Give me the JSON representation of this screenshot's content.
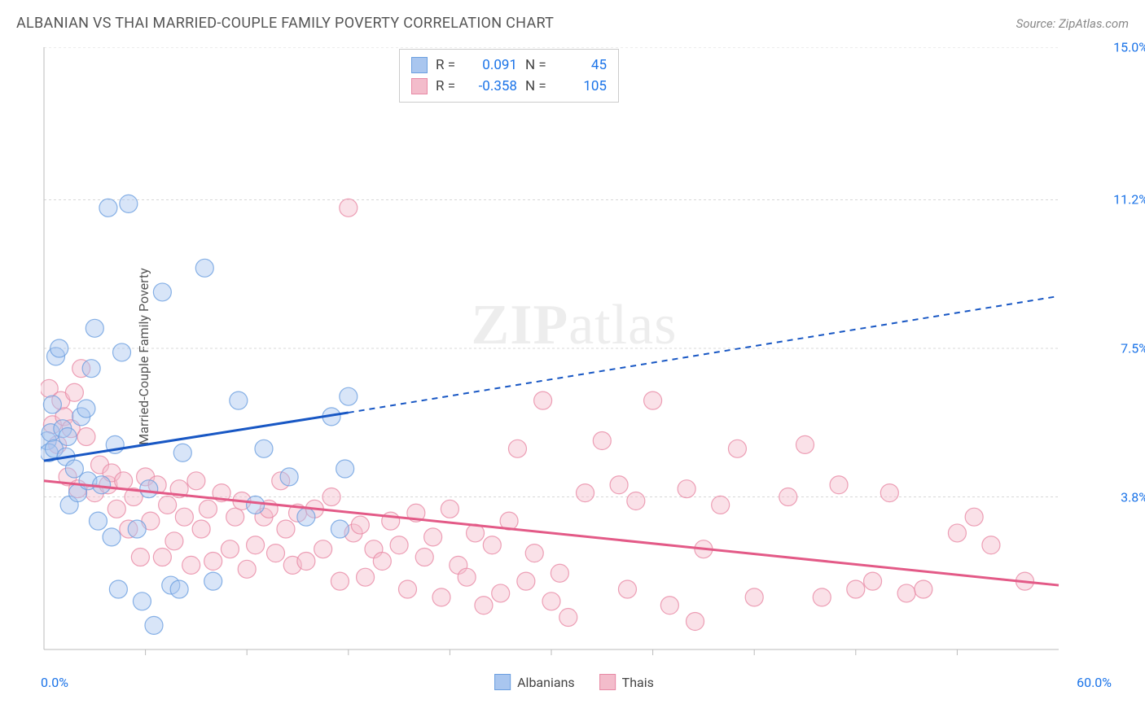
{
  "header": {
    "title": "ALBANIAN VS THAI MARRIED-COUPLE FAMILY POVERTY CORRELATION CHART",
    "source": "Source: ZipAtlas.com"
  },
  "y_axis_label": "Married-Couple Family Poverty",
  "watermark": {
    "zip": "ZIP",
    "atlas": "atlas"
  },
  "chart": {
    "type": "scatter",
    "background_color": "#ffffff",
    "grid_color": "#d8d8d8",
    "axis_color": "#bbbbbb",
    "x_range": [
      0,
      60
    ],
    "y_range": [
      0,
      15
    ],
    "y_ticks": [
      3.8,
      7.5,
      11.2,
      15.0
    ],
    "y_tick_labels": [
      "3.8%",
      "7.5%",
      "11.2%",
      "15.0%"
    ],
    "x_min_label": "0.0%",
    "x_max_label": "60.0%",
    "x_ticks": [
      6,
      12,
      18,
      24,
      30,
      36,
      42,
      48,
      54
    ],
    "marker_radius": 11,
    "marker_opacity": 0.45,
    "trend_line_width": 3,
    "series": {
      "albanians": {
        "label": "Albanians",
        "fill": "#a9c6ef",
        "stroke": "#6b9fe0",
        "trend_color": "#1857c4",
        "R": "0.091",
        "N": "45",
        "trend": {
          "x1": 0,
          "y1": 4.7,
          "x2_solid": 18,
          "y2_solid": 5.9,
          "x2": 60,
          "y2": 8.8
        },
        "points": [
          [
            0.2,
            5.2
          ],
          [
            0.3,
            4.9
          ],
          [
            0.4,
            5.4
          ],
          [
            0.5,
            6.1
          ],
          [
            0.6,
            5.0
          ],
          [
            0.7,
            7.3
          ],
          [
            0.9,
            7.5
          ],
          [
            1.1,
            5.5
          ],
          [
            1.3,
            4.8
          ],
          [
            1.4,
            5.3
          ],
          [
            1.5,
            3.6
          ],
          [
            1.8,
            4.5
          ],
          [
            2.0,
            3.9
          ],
          [
            2.2,
            5.8
          ],
          [
            2.5,
            6.0
          ],
          [
            2.6,
            4.2
          ],
          [
            2.8,
            7.0
          ],
          [
            3.0,
            8.0
          ],
          [
            3.2,
            3.2
          ],
          [
            3.4,
            4.1
          ],
          [
            3.8,
            11.0
          ],
          [
            4.0,
            2.8
          ],
          [
            4.2,
            5.1
          ],
          [
            4.4,
            1.5
          ],
          [
            4.6,
            7.4
          ],
          [
            5.0,
            11.1
          ],
          [
            5.5,
            3.0
          ],
          [
            5.8,
            1.2
          ],
          [
            6.2,
            4.0
          ],
          [
            6.5,
            0.6
          ],
          [
            7.0,
            8.9
          ],
          [
            7.5,
            1.6
          ],
          [
            8.0,
            1.5
          ],
          [
            8.2,
            4.9
          ],
          [
            9.5,
            9.5
          ],
          [
            10.0,
            1.7
          ],
          [
            11.5,
            6.2
          ],
          [
            12.5,
            3.6
          ],
          [
            13.0,
            5.0
          ],
          [
            14.5,
            4.3
          ],
          [
            15.5,
            3.3
          ],
          [
            17.0,
            5.8
          ],
          [
            17.5,
            3.0
          ],
          [
            17.8,
            4.5
          ],
          [
            18.0,
            6.3
          ]
        ]
      },
      "thais": {
        "label": "Thais",
        "fill": "#f3bccb",
        "stroke": "#e889a5",
        "trend_color": "#e35a87",
        "R": "-0.358",
        "N": "105",
        "trend": {
          "x1": 0,
          "y1": 4.2,
          "x2_solid": 60,
          "y2_solid": 1.6,
          "x2": 60,
          "y2": 1.6
        },
        "points": [
          [
            0.3,
            6.5
          ],
          [
            0.5,
            5.6
          ],
          [
            0.8,
            5.1
          ],
          [
            1.0,
            6.2
          ],
          [
            1.2,
            5.8
          ],
          [
            1.4,
            4.3
          ],
          [
            1.6,
            5.5
          ],
          [
            1.8,
            6.4
          ],
          [
            2.0,
            4.0
          ],
          [
            2.2,
            7.0
          ],
          [
            2.5,
            5.3
          ],
          [
            3.0,
            3.9
          ],
          [
            3.3,
            4.6
          ],
          [
            3.8,
            4.1
          ],
          [
            4.0,
            4.4
          ],
          [
            4.3,
            3.5
          ],
          [
            4.7,
            4.2
          ],
          [
            5.0,
            3.0
          ],
          [
            5.3,
            3.8
          ],
          [
            5.7,
            2.3
          ],
          [
            6.0,
            4.3
          ],
          [
            6.3,
            3.2
          ],
          [
            6.7,
            4.1
          ],
          [
            7.0,
            2.3
          ],
          [
            7.3,
            3.6
          ],
          [
            7.7,
            2.7
          ],
          [
            8.0,
            4.0
          ],
          [
            8.3,
            3.3
          ],
          [
            8.7,
            2.1
          ],
          [
            9.0,
            4.2
          ],
          [
            9.3,
            3.0
          ],
          [
            9.7,
            3.5
          ],
          [
            10.0,
            2.2
          ],
          [
            10.5,
            3.9
          ],
          [
            11.0,
            2.5
          ],
          [
            11.3,
            3.3
          ],
          [
            11.7,
            3.7
          ],
          [
            12.0,
            2.0
          ],
          [
            12.5,
            2.6
          ],
          [
            13.0,
            3.3
          ],
          [
            13.3,
            3.5
          ],
          [
            13.7,
            2.4
          ],
          [
            14.0,
            4.2
          ],
          [
            14.3,
            3.0
          ],
          [
            14.7,
            2.1
          ],
          [
            15.0,
            3.4
          ],
          [
            15.5,
            2.2
          ],
          [
            16.0,
            3.5
          ],
          [
            16.5,
            2.5
          ],
          [
            17.0,
            3.8
          ],
          [
            17.5,
            1.7
          ],
          [
            18.0,
            11.0
          ],
          [
            18.3,
            2.9
          ],
          [
            18.7,
            3.1
          ],
          [
            19.0,
            1.8
          ],
          [
            19.5,
            2.5
          ],
          [
            20.0,
            2.2
          ],
          [
            20.5,
            3.2
          ],
          [
            21.0,
            2.6
          ],
          [
            21.5,
            1.5
          ],
          [
            22.0,
            3.4
          ],
          [
            22.5,
            2.3
          ],
          [
            23.0,
            2.8
          ],
          [
            23.5,
            1.3
          ],
          [
            24.0,
            3.5
          ],
          [
            24.5,
            2.1
          ],
          [
            25.0,
            1.8
          ],
          [
            25.5,
            2.9
          ],
          [
            26.0,
            1.1
          ],
          [
            26.5,
            2.6
          ],
          [
            27.0,
            1.4
          ],
          [
            27.5,
            3.2
          ],
          [
            28.0,
            5.0
          ],
          [
            28.5,
            1.7
          ],
          [
            29.0,
            2.4
          ],
          [
            29.5,
            6.2
          ],
          [
            30.0,
            1.2
          ],
          [
            30.5,
            1.9
          ],
          [
            31.0,
            0.8
          ],
          [
            32.0,
            3.9
          ],
          [
            33.0,
            5.2
          ],
          [
            34.0,
            4.1
          ],
          [
            34.5,
            1.5
          ],
          [
            35.0,
            3.7
          ],
          [
            36.0,
            6.2
          ],
          [
            37.0,
            1.1
          ],
          [
            38.0,
            4.0
          ],
          [
            38.5,
            0.7
          ],
          [
            39.0,
            2.5
          ],
          [
            40.0,
            3.6
          ],
          [
            41.0,
            5.0
          ],
          [
            42.0,
            1.3
          ],
          [
            44.0,
            3.8
          ],
          [
            45.0,
            5.1
          ],
          [
            46.0,
            1.3
          ],
          [
            47.0,
            4.1
          ],
          [
            48.0,
            1.5
          ],
          [
            49.0,
            1.7
          ],
          [
            50.0,
            3.9
          ],
          [
            51.0,
            1.4
          ],
          [
            52.0,
            1.5
          ],
          [
            54.0,
            2.9
          ],
          [
            55.0,
            3.3
          ],
          [
            56.0,
            2.6
          ],
          [
            58.0,
            1.7
          ]
        ]
      }
    }
  },
  "stats_box": {
    "rows": [
      {
        "swatch_key": "albanians",
        "R_label": "R =",
        "R": "0.091",
        "N_label": "N =",
        "N": "45"
      },
      {
        "swatch_key": "thais",
        "R_label": "R =",
        "R": "-0.358",
        "N_label": "N =",
        "N": "105"
      }
    ]
  },
  "bottom_legend": {
    "items": [
      {
        "key": "albanians",
        "label": "Albanians"
      },
      {
        "key": "thais",
        "label": "Thais"
      }
    ]
  }
}
